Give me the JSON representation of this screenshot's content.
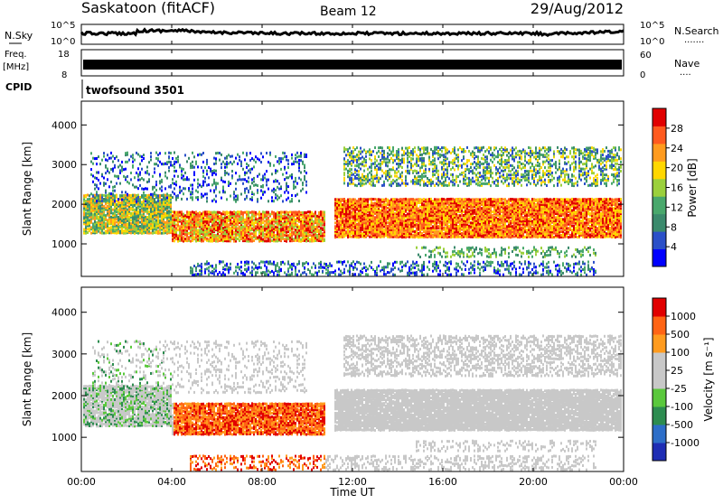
{
  "header": {
    "station": "Saskatoon (fitACF)",
    "beam": "Beam 12",
    "date": "29/Aug/2012"
  },
  "left_labels": {
    "nsky": "N.Sky",
    "freq_line1": "Freq.",
    "freq_line2": "[MHz]",
    "cpid": "CPID"
  },
  "right_labels": {
    "nsearch": "N.Search",
    "nsearch_dots": "·······",
    "nave": "Nave",
    "nave_dots": "····"
  },
  "noise_axis": {
    "left_ticks": [
      "10^5",
      "10^0"
    ],
    "right_ticks": [
      "10^5",
      "10^0"
    ]
  },
  "freq_axis": {
    "left_ticks": [
      "18",
      "8"
    ],
    "right_ticks": [
      "60",
      "0"
    ]
  },
  "cpid_text": "twofsound 3501",
  "colors": {
    "power_scale": [
      "#0000ff",
      "#2b50c8",
      "#3b8a6c",
      "#49a86c",
      "#9bd03c",
      "#ffd700",
      "#ff9b1e",
      "#ff5a1e",
      "#e10000"
    ],
    "velocity_scale": [
      "#1e2db4",
      "#2d6ec8",
      "#2d8c50",
      "#5ac83c",
      "#c8c8c8",
      "#c8c8c8",
      "#ff9b1e",
      "#ff6414",
      "#e10000"
    ]
  },
  "chart_data": [
    {
      "type": "heatmap",
      "name": "power",
      "ylabel": "Slant Range [km]",
      "ylim": [
        180,
        4600
      ],
      "y_ticks": [
        "1000",
        "2000",
        "3000",
        "4000"
      ],
      "y_tick_values": [
        1000,
        2000,
        3000,
        4000
      ],
      "colorbar_label": "Power [dB]",
      "colorbar_ticks": [
        "4",
        "8",
        "12",
        "16",
        "20",
        "24",
        "28"
      ],
      "colorbar_range": [
        0,
        30
      ]
    },
    {
      "type": "heatmap",
      "name": "velocity",
      "ylabel": "Slant Range [km]",
      "ylim": [
        180,
        4600
      ],
      "y_ticks": [
        "1000",
        "2000",
        "3000",
        "4000"
      ],
      "y_tick_values": [
        1000,
        2000,
        3000,
        4000
      ],
      "colorbar_label": "Velocity [m s⁻¹]",
      "colorbar_ticks": [
        "1000",
        "500",
        "100",
        "25",
        "-25",
        "-100",
        "-500",
        "-1000"
      ]
    }
  ],
  "x_axis": {
    "label": "Time UT",
    "ticks": [
      "00:00",
      "04:00",
      "08:00",
      "12:00",
      "16:00",
      "20:00",
      "00:00"
    ],
    "tick_hours": [
      0,
      4,
      8,
      12,
      16,
      20,
      24
    ]
  }
}
